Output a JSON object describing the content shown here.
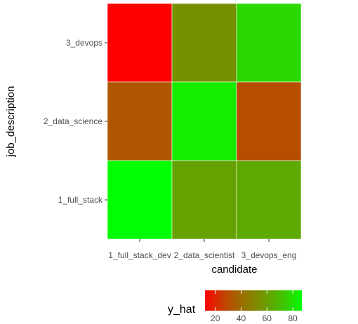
{
  "chart_data": {
    "type": "heatmap",
    "x_categories": [
      "1_full_stack_dev",
      "2_data_scientist",
      "3_devops_eng"
    ],
    "y_categories": [
      "1_full_stack",
      "2_data_science",
      "3_devops"
    ],
    "xlabel": "candidate",
    "ylabel": "job_description",
    "cells": [
      {
        "x": "1_full_stack_dev",
        "y": "3_devops",
        "value": 12
      },
      {
        "x": "2_data_scientist",
        "y": "3_devops",
        "value": 55
      },
      {
        "x": "3_devops_eng",
        "y": "3_devops",
        "value": 78
      },
      {
        "x": "1_full_stack_dev",
        "y": "2_data_science",
        "value": 33
      },
      {
        "x": "2_data_scientist",
        "y": "2_data_science",
        "value": 83
      },
      {
        "x": "3_devops_eng",
        "y": "2_data_science",
        "value": 30
      },
      {
        "x": "1_full_stack_dev",
        "y": "1_full_stack",
        "value": 87
      },
      {
        "x": "2_data_scientist",
        "y": "1_full_stack",
        "value": 61
      },
      {
        "x": "3_devops_eng",
        "y": "1_full_stack",
        "value": 64
      }
    ],
    "legend": {
      "title": "y_hat",
      "position": "bottom",
      "min": 12,
      "max": 87,
      "low_color": "#ff0000",
      "high_color": "#00ff00",
      "ticks": [
        20,
        40,
        60,
        80
      ]
    },
    "grid": false
  }
}
